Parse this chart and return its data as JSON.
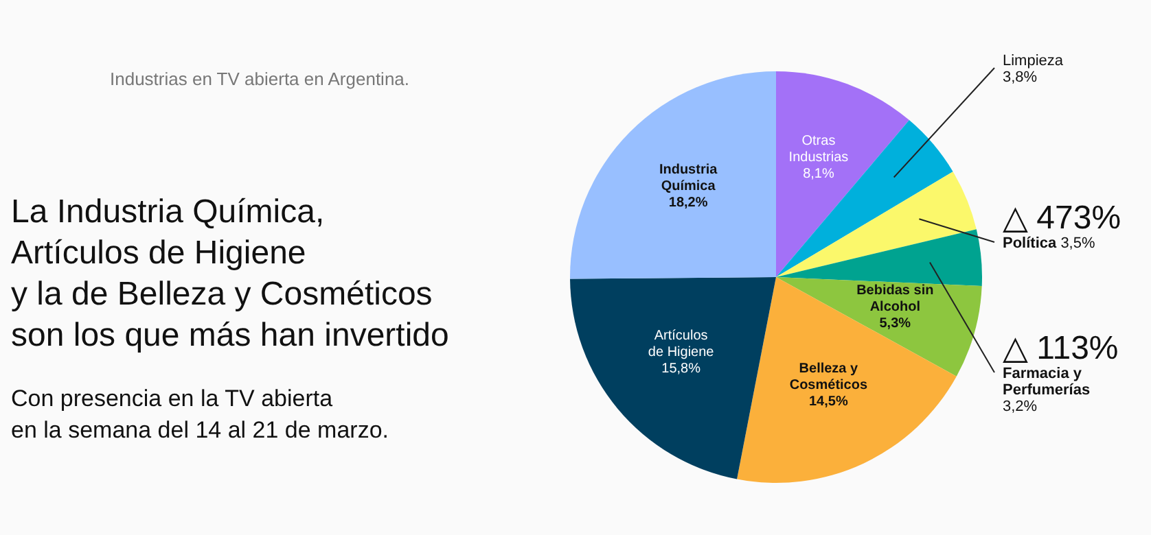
{
  "chart_data": {
    "type": "pie",
    "title": "La Industria Química,\nArtículos de Higiene\ny la de Belleza y Cosméticos\nson los que más han invertido",
    "subtitle": "Con presencia en la TV abierta\nen la semana del 14 al 21 de marzo.",
    "annotations": [
      "Industrias en TV abierta en Argentina.",
      {
        "text": "△ 473%",
        "x": "Política"
      },
      {
        "text": "△ 113%",
        "x": "Farmacia y Perfumerías"
      }
    ],
    "categories": [
      "Otras Industrias",
      "Limpieza",
      "Política",
      "Farmacia y Perfumerías",
      "Bebidas sin Alcohol",
      "Belleza y Cosméticos",
      "Artículos de Higiene",
      "Industria Química"
    ],
    "values": [
      8.1,
      3.8,
      3.5,
      3.2,
      5.3,
      14.5,
      15.8,
      18.2
    ],
    "value_labels": [
      "8,1%",
      "3,8%",
      "3,5%",
      "3,2%",
      "5,3%",
      "14,5%",
      "15,8%",
      "18,2%"
    ],
    "colors": [
      "#a371f7",
      "#00b0dc",
      "#fbf86b",
      "#00a390",
      "#8dc63f",
      "#fbb03b",
      "#003f5f",
      "#98bfff"
    ]
  }
}
